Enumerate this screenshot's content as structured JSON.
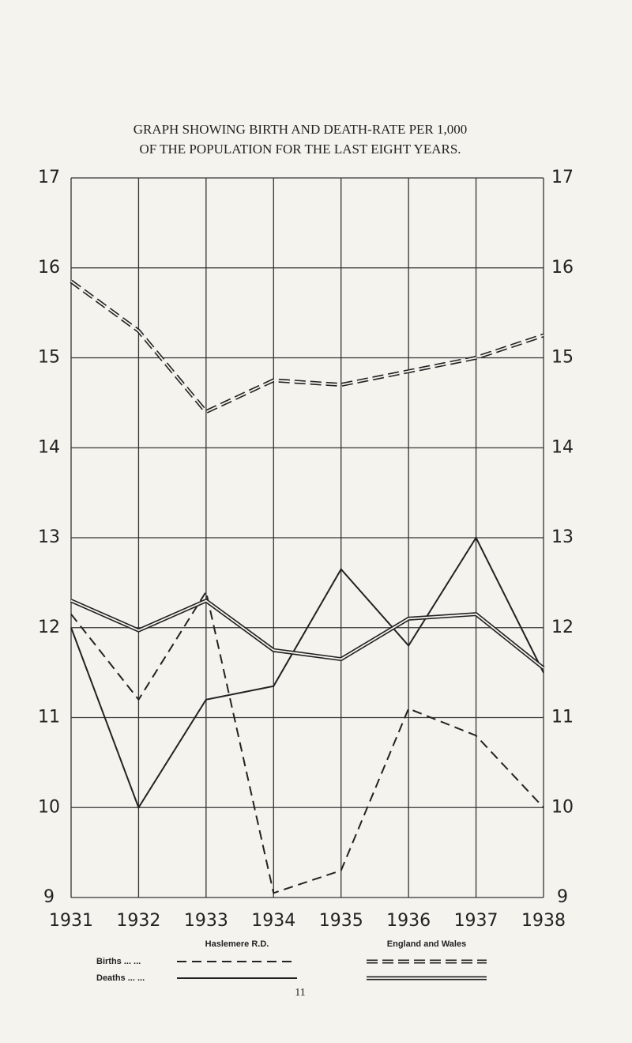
{
  "chart_data": {
    "type": "line",
    "title": "GRAPH SHOWING BIRTH AND DEATH-RATE PER 1,000",
    "subtitle": "OF THE POPULATION FOR THE LAST EIGHT YEARS.",
    "x": [
      1931,
      1932,
      1933,
      1934,
      1935,
      1936,
      1937,
      1938
    ],
    "xlim": [
      1931,
      1938
    ],
    "ylim": [
      9,
      17
    ],
    "yticks": [
      9,
      10,
      11,
      12,
      13,
      14,
      15,
      16,
      17
    ],
    "grid": true,
    "rows": [
      "Births ... ...",
      "Deaths ... ..."
    ],
    "dashed": [
      true,
      false
    ],
    "groups": [
      {
        "name": "Haslemere R.D.",
        "double": false,
        "series": [
          {
            "values": [
              12.15,
              11.2,
              12.4,
              9.05,
              9.3,
              11.1,
              10.8,
              10.0
            ]
          },
          {
            "values": [
              12.0,
              10.0,
              11.2,
              11.35,
              12.65,
              11.8,
              13.0,
              11.5
            ]
          }
        ]
      },
      {
        "name": "England and Wales",
        "double": true,
        "series": [
          {
            "values": [
              15.85,
              15.3,
              14.4,
              14.75,
              14.7,
              14.85,
              15.0,
              15.25
            ]
          },
          {
            "values": [
              12.3,
              11.97,
              12.3,
              11.75,
              11.65,
              12.1,
              12.15,
              11.55
            ]
          }
        ]
      }
    ],
    "page_number": "11"
  }
}
